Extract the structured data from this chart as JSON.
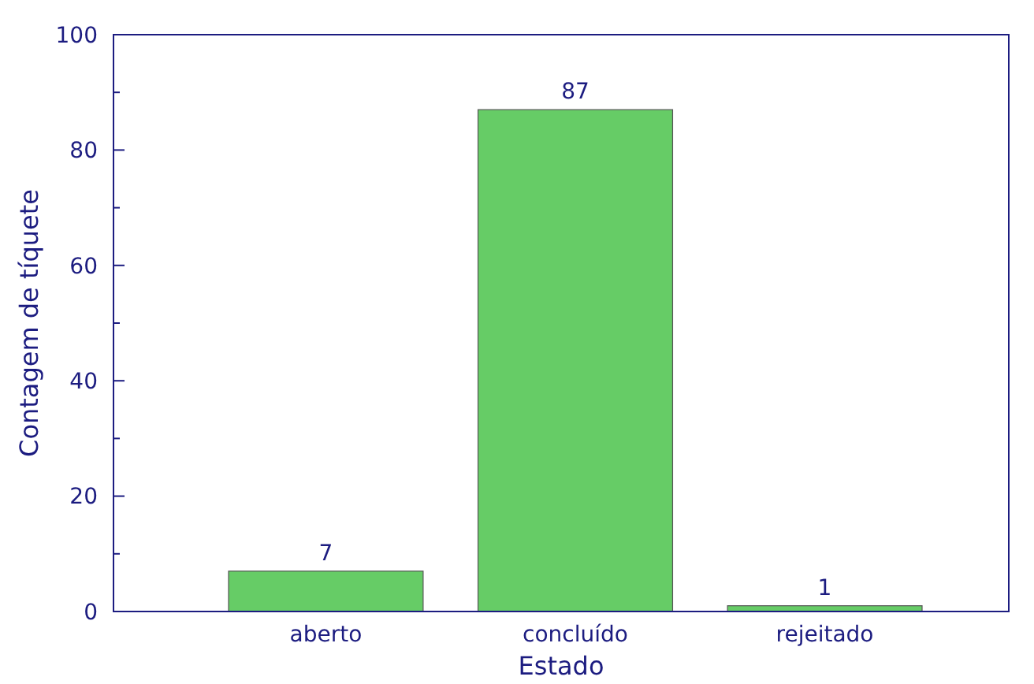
{
  "chart_data": {
    "type": "bar",
    "xlabel": "Estado",
    "ylabel": "Contagem de tíquete",
    "categories": [
      "aberto",
      "concluído",
      "rejeitado"
    ],
    "values": [
      7,
      87,
      1
    ],
    "color": "#66cc66",
    "data_labels": true,
    "ylim": [
      0,
      100
    ],
    "yticks": [
      0,
      {
        "value": 10,
        "label": null
      },
      20,
      {
        "value": 30,
        "label": null
      },
      40,
      {
        "value": 50,
        "label": null
      },
      60,
      {
        "value": 70,
        "label": null
      },
      80,
      {
        "value": 90,
        "label": null
      },
      100
    ]
  }
}
